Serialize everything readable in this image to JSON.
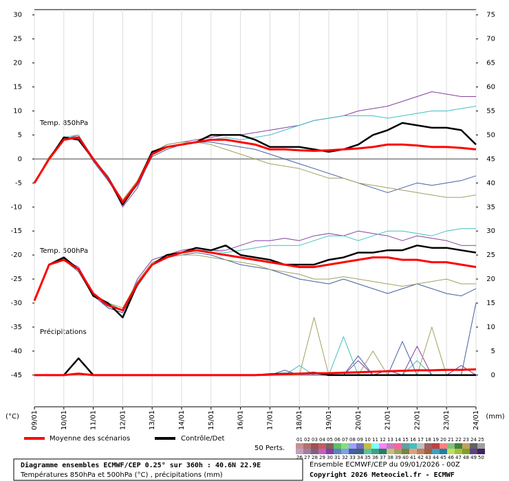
{
  "chart_data": {
    "type": "line",
    "annotations": [
      "Temp. 850hPa",
      "Temp. 500hPa",
      "Précipitations"
    ],
    "y_label": "(°C)",
    "y2_label": "(mm)",
    "x": [
      0,
      0.5,
      1,
      1.5,
      2,
      2.5,
      3,
      3.5,
      4,
      4.5,
      5,
      5.5,
      6,
      6.5,
      7,
      7.5,
      8,
      8.5,
      9,
      9.5,
      10,
      10.5,
      11,
      11.5,
      12,
      12.5,
      13,
      13.5,
      14,
      14.5,
      15
    ],
    "xlim": [
      0,
      15
    ],
    "xticks": [
      {
        "value": 0,
        "label": "09/01"
      },
      {
        "value": 1,
        "label": "10/01"
      },
      {
        "value": 2,
        "label": "11/01"
      },
      {
        "value": 3,
        "label": "12/01"
      },
      {
        "value": 4,
        "label": "13/01"
      },
      {
        "value": 5,
        "label": "14/01"
      },
      {
        "value": 6,
        "label": "15/01"
      },
      {
        "value": 7,
        "label": "16/01"
      },
      {
        "value": 8,
        "label": "17/01"
      },
      {
        "value": 9,
        "label": "18/01"
      },
      {
        "value": 10,
        "label": "19/01"
      },
      {
        "value": 11,
        "label": "20/01"
      },
      {
        "value": 12,
        "label": "21/01"
      },
      {
        "value": 13,
        "label": "22/01"
      },
      {
        "value": 14,
        "label": "23/01"
      },
      {
        "value": 15,
        "label": "24/01"
      }
    ],
    "ylim": [
      -51.6,
      31.1
    ],
    "yticks": [
      30,
      25,
      20,
      15,
      10,
      5,
      0,
      -5,
      -10,
      -15,
      -20,
      -25,
      -30,
      -35,
      -40,
      -45
    ],
    "y2lim": [
      -6.6,
      76.1
    ],
    "y2ticks": [
      75,
      70,
      65,
      60,
      55,
      50,
      45,
      40,
      35,
      30,
      25,
      20,
      15,
      10,
      5,
      0
    ],
    "grid": true,
    "zero_line": true,
    "series": [
      {
        "name": "Moyenne des scénarios",
        "color": "#ff0000",
        "t850": [
          -5,
          0,
          4,
          4.5,
          0,
          -4,
          -9,
          -5,
          1,
          2.5,
          3,
          3.5,
          4,
          4,
          3.5,
          3,
          2,
          2,
          1.8,
          1.7,
          1.8,
          2,
          2.2,
          2.5,
          3,
          3,
          2.8,
          2.5,
          2.5,
          2.3,
          2
        ],
        "t500": [
          -29.5,
          -22,
          -21,
          -23,
          -28,
          -30.5,
          -31.5,
          -26,
          -22,
          -20.5,
          -19.5,
          -19,
          -19.5,
          -20,
          -20.5,
          -21,
          -21.5,
          -22,
          -22.5,
          -22.5,
          -22,
          -21.5,
          -21,
          -20.5,
          -20.5,
          -21,
          -21,
          -21.5,
          -21.5,
          -22,
          -22.5
        ],
        "precip": [
          0,
          0,
          0,
          0.3,
          0,
          0,
          0,
          0,
          0,
          0,
          0,
          0,
          0,
          0,
          0,
          0,
          0.1,
          0.2,
          0.3,
          0.4,
          0.4,
          0.5,
          0.6,
          0.7,
          0.8,
          0.9,
          1,
          1,
          1.1,
          1.1,
          1.2
        ]
      },
      {
        "name": "Contrôle/Det",
        "color": "#000000",
        "t850": [
          -5,
          0,
          4.5,
          4,
          0,
          -4,
          -9.5,
          -5,
          1.5,
          2.5,
          3,
          3.5,
          5,
          5,
          5,
          4,
          2.5,
          2.5,
          2.5,
          2,
          1.5,
          2,
          3,
          5,
          6,
          7.5,
          7,
          6.5,
          6.5,
          6,
          3
        ],
        "t500": [
          -29.5,
          -22,
          -20.5,
          -23,
          -28.5,
          -30,
          -33,
          -26,
          -22,
          -20,
          -19.5,
          -18.5,
          -19,
          -18,
          -20,
          -20.5,
          -21,
          -22,
          -22,
          -22,
          -21,
          -20.5,
          -19.5,
          -19.5,
          -19,
          -19,
          -18,
          -18.5,
          -18.5,
          -19,
          -19.5
        ],
        "precip": [
          0,
          0,
          0,
          3.5,
          0,
          0,
          0,
          0,
          0,
          0,
          0,
          0,
          0,
          0,
          0,
          0,
          0.2,
          0.3,
          0.3,
          0.5,
          0,
          0,
          0,
          0,
          0,
          0,
          0,
          0,
          0,
          0,
          0
        ]
      }
    ],
    "members": {
      "label": "50 Perts.",
      "names": [
        "01",
        "02",
        "03",
        "04",
        "05",
        "06",
        "07",
        "08",
        "09",
        "10",
        "11",
        "12",
        "13",
        "14",
        "15",
        "16",
        "17",
        "18",
        "19",
        "20",
        "21",
        "22",
        "23",
        "24",
        "25",
        "26",
        "27",
        "28",
        "29",
        "30",
        "31",
        "32",
        "33",
        "34",
        "35",
        "36",
        "37",
        "38",
        "39",
        "40",
        "41",
        "42",
        "43",
        "44",
        "45",
        "46",
        "47",
        "48",
        "49",
        "50"
      ],
      "colors": [
        "#c89090",
        "#b07070",
        "#a05050",
        "#c06060",
        "#806060",
        "#60c060",
        "#80e080",
        "#a0a0ff",
        "#7070c0",
        "#c0c040",
        "#80ffff",
        "#ff80ff",
        "#c080c0",
        "#ff60a0",
        "#60a0a0",
        "#40c0c0",
        "#c0c0c0",
        "#a06060",
        "#c04040",
        "#ff8080",
        "#80c080",
        "#408040",
        "#c0a060",
        "#606060",
        "#a0a0a0",
        "#c0a0c0",
        "#a080a0",
        "#806080",
        "#c060c0",
        "#8040a0",
        "#6080c0",
        "#80a0e0",
        "#4060a0",
        "#406080",
        "#60c0a0",
        "#40a080",
        "#208060",
        "#c0c080",
        "#a0a060",
        "#808040",
        "#e0a080",
        "#c08060",
        "#a06040",
        "#40a0c0",
        "#2080a0",
        "#c0e060",
        "#a0c040",
        "#80a020",
        "#604080",
        "#402060"
      ],
      "series": [
        {
          "name": "30",
          "color": "#8040a0",
          "t850": [
            -5,
            0,
            4,
            5,
            0,
            -4,
            -10,
            -6,
            1,
            3,
            3.5,
            4,
            4.5,
            5,
            5,
            5.5,
            6,
            6.5,
            7,
            8,
            8.5,
            9,
            10,
            10.5,
            11,
            12,
            13,
            14,
            13.5,
            13,
            13
          ],
          "t500": [
            -29.5,
            -22,
            -21,
            -22.5,
            -28,
            -31,
            -32,
            -25,
            -21,
            -20,
            -19,
            -18.5,
            -19,
            -19,
            -18,
            -17,
            -17,
            -16.5,
            -17,
            -16,
            -15.5,
            -16,
            -15,
            -15.5,
            -16,
            -17,
            -16,
            -16.5,
            -17,
            -18,
            -18
          ],
          "precip": [
            0,
            0,
            0,
            0,
            0,
            0,
            0,
            0,
            0,
            0,
            0,
            0,
            0,
            0,
            0,
            0,
            0,
            0,
            0,
            0,
            0,
            0,
            3,
            0,
            1,
            0,
            6,
            0,
            0,
            2,
            0
          ]
        },
        {
          "name": "16",
          "color": "#40c0c0",
          "t850": [
            -5,
            0,
            4.5,
            5,
            0,
            -3.5,
            -9,
            -5,
            1.5,
            2.5,
            3,
            3.5,
            4,
            4.5,
            4,
            4.5,
            5,
            6,
            7,
            8,
            8.5,
            9,
            9,
            9,
            8.5,
            9,
            9.5,
            10,
            10,
            10.5,
            11
          ],
          "t500": [
            -29.5,
            -22,
            -20.5,
            -23,
            -28,
            -30,
            -31.5,
            -26,
            -22,
            -20,
            -19.5,
            -19,
            -19,
            -19.5,
            -19,
            -18.5,
            -18,
            -18,
            -18,
            -17,
            -16,
            -16,
            -17,
            -16,
            -15,
            -15,
            -15.5,
            -16,
            -15,
            -14.5,
            -14.5
          ],
          "precip": [
            0,
            0,
            0,
            0,
            0,
            0,
            0,
            0,
            0,
            0,
            0,
            0,
            0,
            0,
            0,
            0,
            0,
            0,
            2,
            0,
            0,
            8,
            0,
            0,
            0,
            0,
            3,
            0,
            0,
            0,
            0
          ]
        },
        {
          "name": "33",
          "color": "#4060a0",
          "t850": [
            -5,
            0,
            4,
            4.5,
            -0.5,
            -4.5,
            -9,
            -5.5,
            0.5,
            2,
            3,
            3.5,
            3.5,
            3,
            2.5,
            2,
            1,
            0,
            -1,
            -2,
            -3,
            -4,
            -5,
            -6,
            -7,
            -6,
            -5,
            -5.5,
            -5,
            -4.5,
            -3.5
          ],
          "t500": [
            -29.5,
            -22,
            -21,
            -23.5,
            -28.5,
            -31,
            -32,
            -26.5,
            -22,
            -20.5,
            -20,
            -19.5,
            -20,
            -21,
            -22,
            -22.5,
            -23,
            -24,
            -25,
            -25.5,
            -26,
            -25,
            -26,
            -27,
            -28,
            -27,
            -26,
            -27,
            -28,
            -28.5,
            -27
          ],
          "precip": [
            0,
            0,
            0,
            0,
            0,
            0,
            0,
            0,
            0,
            0,
            0,
            0,
            0,
            0,
            0,
            0,
            0,
            1,
            0,
            0,
            0,
            0,
            4,
            0,
            0,
            7,
            0,
            0,
            0,
            0,
            15
          ]
        },
        {
          "name": "39",
          "color": "#a0a060",
          "t850": [
            -5,
            0.5,
            4,
            4.5,
            0,
            -4,
            -8.5,
            -4.5,
            1.5,
            3,
            3.5,
            3.5,
            3,
            2,
            1,
            0,
            -1,
            -1.5,
            -2,
            -3,
            -4,
            -4,
            -5,
            -5.5,
            -6,
            -6.5,
            -7,
            -7.5,
            -8,
            -8,
            -7.5
          ],
          "t500": [
            -29.5,
            -22,
            -21,
            -23,
            -28,
            -30,
            -31,
            -25.5,
            -21.5,
            -20.5,
            -20,
            -20,
            -20.5,
            -21,
            -21.5,
            -22,
            -23,
            -23.5,
            -24,
            -25,
            -25,
            -24.5,
            -25,
            -25.5,
            -26,
            -26.5,
            -26,
            -25.5,
            -25,
            -26,
            -26
          ],
          "precip": [
            0,
            0,
            0,
            0,
            0,
            0,
            0,
            0,
            0,
            0,
            0,
            0,
            0,
            0,
            0,
            0,
            0,
            0,
            0,
            12,
            0,
            0,
            0,
            5,
            0,
            0,
            0,
            10,
            0,
            0,
            0
          ]
        }
      ]
    }
  },
  "footer": {
    "title": "Diagramme ensembles ECMWF/CEP 0.25° sur 360h : 40.6N 22.9E",
    "subtitle": "Températures 850hPa et 500hPa (°C) , précipitations (mm)",
    "run": "Ensemble ECMWF/CEP du 09/01/2026 - 00Z",
    "copyright": "Copyright 2026 Meteociel.fr - ECMWF"
  }
}
